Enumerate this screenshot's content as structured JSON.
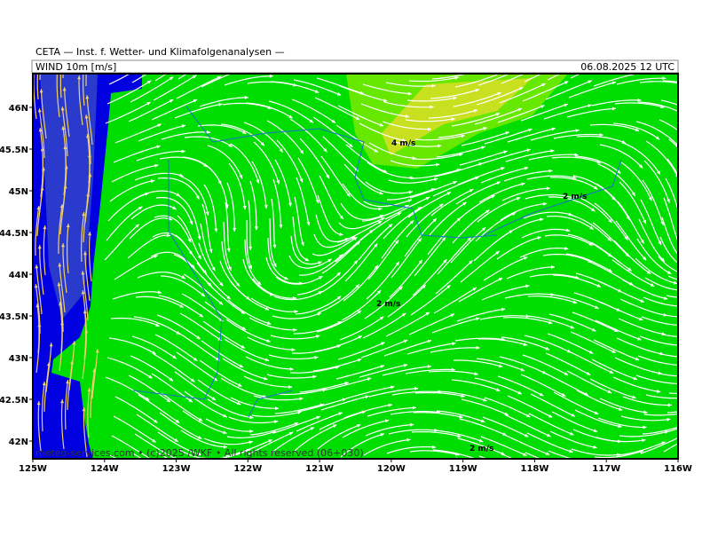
{
  "header": {
    "institute": "CETA — Inst. f. Wetter- und Klimafolgenanalysen —",
    "field": "WIND 10m [m/s]",
    "valid": "06.08.2025 12 UTC"
  },
  "map": {
    "lon_labels": [
      "125W",
      "124W",
      "123W",
      "122W",
      "121W",
      "120W",
      "119W",
      "118W",
      "117W",
      "116W"
    ],
    "lat_labels": [
      "46N",
      "45.5N",
      "45N",
      "44.5N",
      "44N",
      "43.5N",
      "43N",
      "42.5N",
      "42N"
    ],
    "contour_labels": [
      "4 m/s",
      "2 m/s",
      "2 m/s",
      "2 m/s"
    ],
    "credit": "meteo-services.com • (c)2025 /WKF • All rights reserved (06+030)"
  }
}
